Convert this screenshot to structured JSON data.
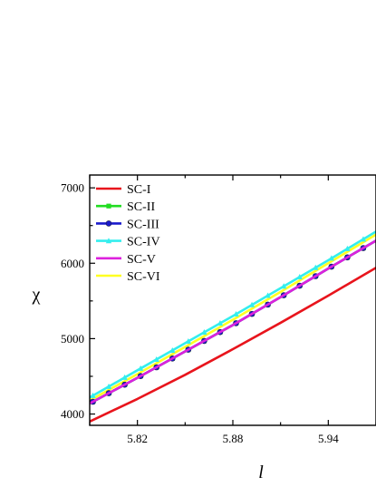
{
  "chart_data": {
    "type": "line",
    "xlabel": "l",
    "ylabel": "χ",
    "xlim": [
      5.79,
      5.97
    ],
    "ylim": [
      3850,
      7170
    ],
    "xticks": [
      5.82,
      5.88,
      5.94
    ],
    "xtick_labels": [
      "5.82",
      "5.88",
      "5.94"
    ],
    "yticks": [
      4000,
      5000,
      6000,
      7000
    ],
    "ytick_labels": [
      "4000",
      "5000",
      "6000",
      "7000"
    ],
    "grid": false,
    "legend_position": "top-left",
    "series": [
      {
        "name": "SC-I",
        "color": "#e8141c",
        "marker": "none",
        "x": [
          5.79,
          5.82,
          5.85,
          5.88,
          5.91,
          5.94,
          5.97
        ],
        "y": [
          3900,
          4200,
          4520,
          4860,
          5210,
          5570,
          5940
        ]
      },
      {
        "name": "SC-II",
        "color": "#22dd22",
        "marker": "square",
        "x": [
          5.79,
          5.82,
          5.85,
          5.88,
          5.91,
          5.94,
          5.97
        ],
        "y": [
          4140,
          4480,
          4830,
          5180,
          5550,
          5930,
          6300
        ]
      },
      {
        "name": "SC-III",
        "color": "#1a1acc",
        "marker": "circle",
        "x": [
          5.79,
          5.82,
          5.85,
          5.88,
          5.91,
          5.94,
          5.97
        ],
        "y": [
          4140,
          4480,
          4830,
          5180,
          5550,
          5930,
          6300
        ]
      },
      {
        "name": "SC-IV",
        "color": "#33eeee",
        "marker": "triangle",
        "x": [
          5.79,
          5.82,
          5.85,
          5.88,
          5.91,
          5.94,
          5.97
        ],
        "y": [
          4220,
          4580,
          4940,
          5300,
          5670,
          6040,
          6420
        ]
      },
      {
        "name": "SC-V",
        "color": "#dd22dd",
        "marker": "none",
        "x": [
          5.79,
          5.82,
          5.85,
          5.88,
          5.91,
          5.94,
          5.97
        ],
        "y": [
          4140,
          4480,
          4830,
          5180,
          5550,
          5930,
          6300
        ]
      },
      {
        "name": "SC-VI",
        "color": "#ffff22",
        "marker": "none",
        "x": [
          5.79,
          5.82,
          5.85,
          5.88,
          5.91,
          5.94,
          5.97
        ],
        "y": [
          4180,
          4530,
          4890,
          5250,
          5620,
          6000,
          6380
        ]
      }
    ]
  }
}
